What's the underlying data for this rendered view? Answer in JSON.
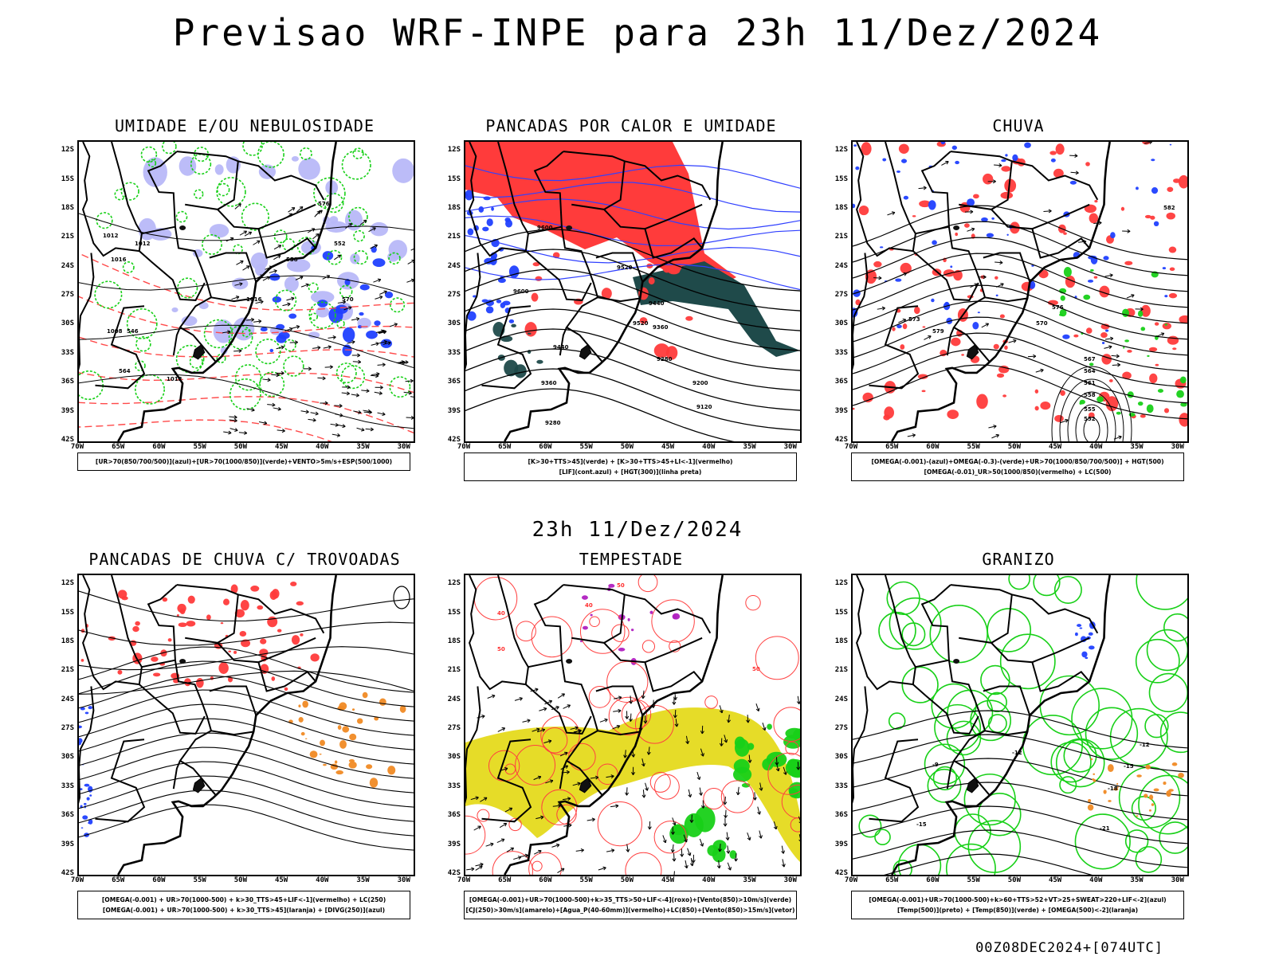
{
  "title": "Previsao WRF-INPE  para 23h 11/Dez/2024",
  "subtitle": "23h 11/Dez/2024",
  "footer": "00Z08DEC2024+[074UTC]",
  "lat_labels": [
    "12S",
    "15S",
    "18S",
    "21S",
    "24S",
    "27S",
    "30S",
    "33S",
    "36S",
    "39S",
    "42S"
  ],
  "lon_labels": [
    "70W",
    "65W",
    "60W",
    "55W",
    "50W",
    "45W",
    "40W",
    "35W",
    "30W"
  ],
  "colors": {
    "red": "#ff3b3b",
    "green": "#18d018",
    "blue": "#2040ff",
    "lightblue": "#b8b8f8",
    "darkteal": "#1f4a4a",
    "yellow": "#e6dc28",
    "orange": "#f08a24",
    "purple": "#b020c0"
  },
  "panels": [
    {
      "title": "UMIDADE E/OU NEBULOSIDADE",
      "legend": [
        "[UR>70(850/700/500)](azul)+[UR>70(1000/850)](verde)+VENTO>5m/s+ESP(500/1000)"
      ],
      "contour_labels": [
        "1012",
        "1016",
        "1012",
        "1008",
        "1012",
        "1016",
        "576",
        "570",
        "564",
        "558",
        "552",
        "546"
      ]
    },
    {
      "title": "PANCADAS POR CALOR E UMIDADE",
      "legend": [
        "[K>30+TTS>45](verde) + [K>30+TTS>45+LI<-1](vermelho)",
        "[LIF](cont.azul) + [HGT(300)](linha preta)"
      ],
      "contour_labels": [
        "9600",
        "9600",
        "9520",
        "9440",
        "9360",
        "9280",
        "9200",
        "9120",
        "9520",
        "9440",
        "9360",
        "9280"
      ]
    },
    {
      "title": "CHUVA",
      "legend": [
        "[OMEGA(-0.001)-(azul)+OMEGA(-0.3)-(verde)+UR>70(1000/850/700/500)] + HGT(500)",
        "[OMEGA(-0.01)_UR>50(1000/850)(vermelho) + LC(500)"
      ],
      "contour_labels": [
        "582",
        "579",
        "576",
        "573",
        "570",
        "567",
        "564",
        "561",
        "558",
        "555",
        "552"
      ]
    },
    {
      "title": "PANCADAS DE CHUVA C/ TROVOADAS",
      "legend": [
        "[OMEGA(-0.001) + UR>70(1000-500) + k>30_TTS>45+LIF<-1](vermelho) + LC(250)",
        "[OMEGA(-0.001) + UR>70(1000-500) + k>30_TTS>45](laranja) + [DIVG(250)](azul)"
      ],
      "contour_labels": []
    },
    {
      "title": "TEMPESTADE",
      "legend": [
        "[OMEGA(-0.001)+UR>70(1000-500)+k>35_TTS>50+LIF<-4](roxo)+[Vento(850)>10m/s](verde)",
        "[CJ(250)>30m/s](amarelo)+[Agua_P(40-60mm)](vermelho)+LC(850)+[Vento(850)>15m/s](vetor)"
      ],
      "contour_labels": [
        "50",
        "40",
        "50",
        "40",
        "50"
      ]
    },
    {
      "title": "GRANIZO",
      "legend": [
        "[OMEGA(-0.001)+UR>70(1000-500)+k>60+TTS>52+VT>25+SWEAT>220+LIF<-2](azul)",
        "[Temp(500)](preto) + [Temp(850)](verde) + [OMEGA(500)<-2](laranja)"
      ],
      "contour_labels": [
        "-9",
        "-12",
        "-15",
        "-18",
        "-21",
        "-15",
        "-12"
      ]
    }
  ]
}
